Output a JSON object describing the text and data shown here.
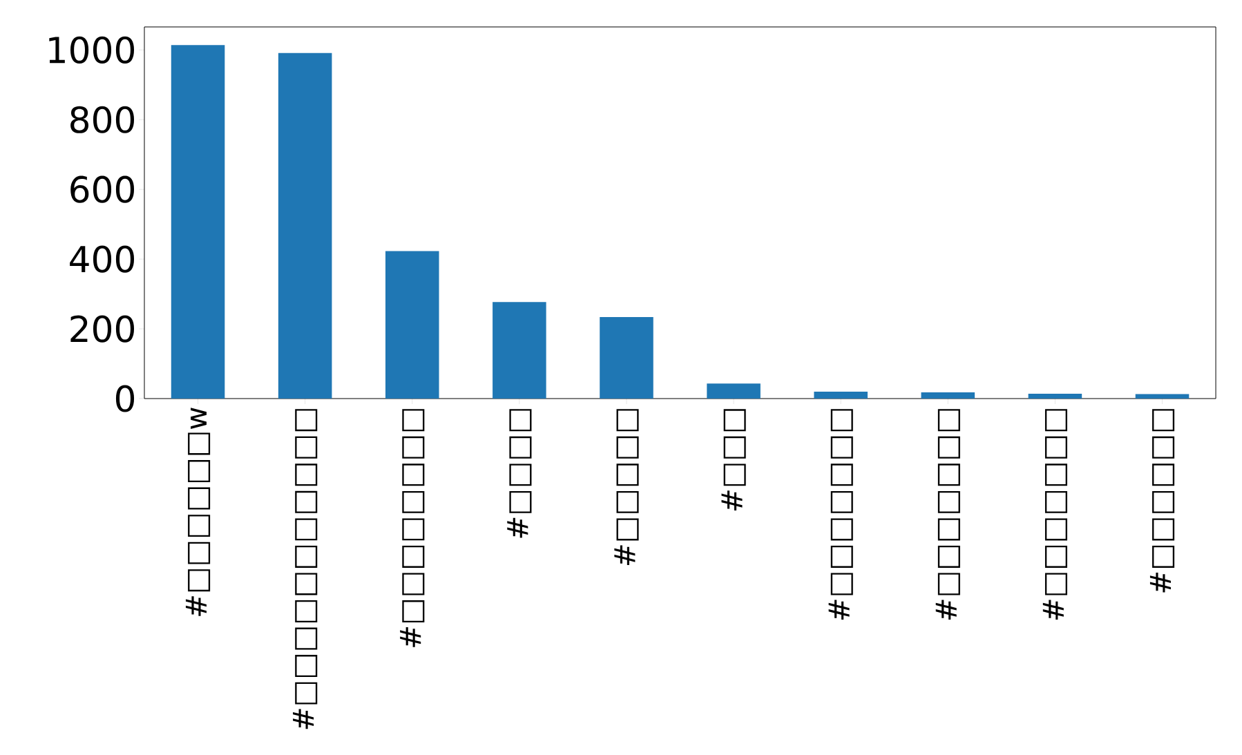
{
  "chart_data": {
    "type": "bar",
    "categories": [
      "#□□□□□□w",
      "#□□□□□□□□□□□",
      "#□□□□□□□□",
      "#□□□□",
      "#□□□□□",
      "#□□□",
      "#□□□□□□□",
      "#□□□□□□□",
      "#□□□□□□□",
      "#□□□□□□"
    ],
    "values": [
      1014,
      991,
      423,
      277,
      234,
      43,
      20,
      18,
      14,
      13
    ],
    "color": "#1f77b4",
    "ylim": [
      0,
      1066
    ],
    "yticks": [
      0,
      200,
      400,
      600,
      800,
      1000
    ],
    "grid": false
  }
}
